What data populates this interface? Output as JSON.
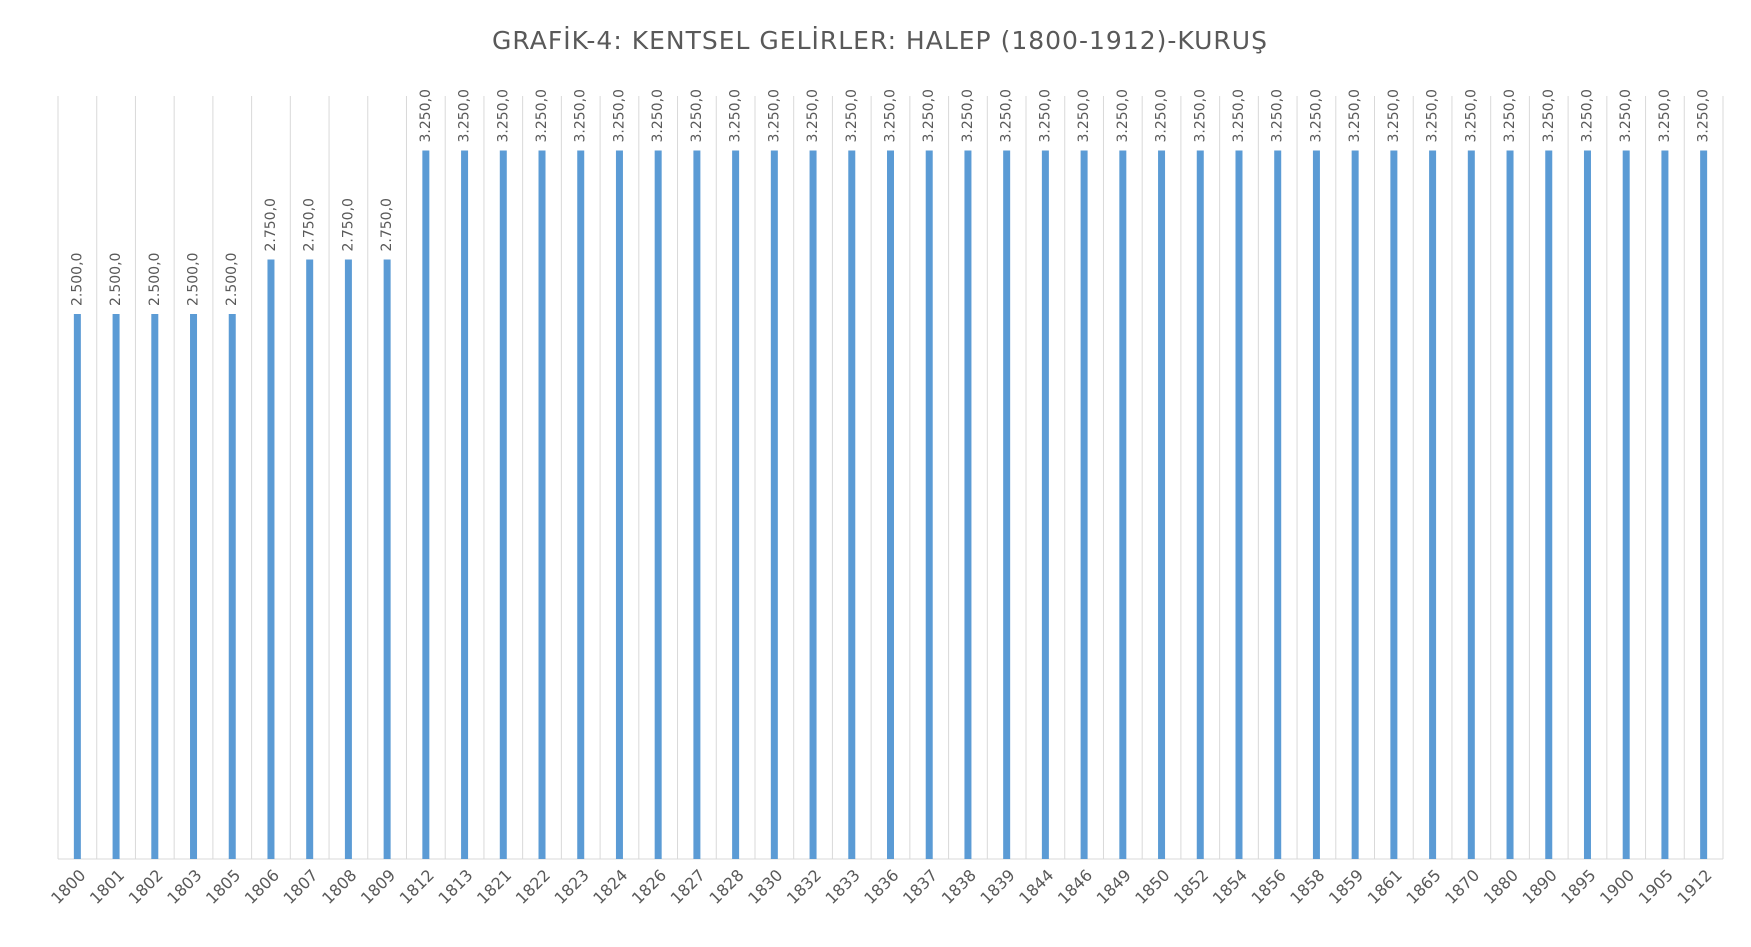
{
  "chart_data": {
    "type": "bar",
    "title": "GRAFİK-4: KENTSEL GELİRLER: HALEP (1800-1912)-KURUŞ",
    "categories": [
      "1800",
      "1801",
      "1802",
      "1803",
      "1805",
      "1806",
      "1807",
      "1808",
      "1809",
      "1812",
      "1813",
      "1821",
      "1822",
      "1823",
      "1824",
      "1826",
      "1827",
      "1828",
      "1830",
      "1832",
      "1833",
      "1836",
      "1837",
      "1838",
      "1839",
      "1844",
      "1846",
      "1849",
      "1850",
      "1852",
      "1854",
      "1856",
      "1858",
      "1859",
      "1861",
      "1865",
      "1870",
      "1880",
      "1890",
      "1895",
      "1900",
      "1905",
      "1912"
    ],
    "values": [
      2500,
      2500,
      2500,
      2500,
      2500,
      2750,
      2750,
      2750,
      2750,
      3250,
      3250,
      3250,
      3250,
      3250,
      3250,
      3250,
      3250,
      3250,
      3250,
      3250,
      3250,
      3250,
      3250,
      3250,
      3250,
      3250,
      3250,
      3250,
      3250,
      3250,
      3250,
      3250,
      3250,
      3250,
      3250,
      3250,
      3250,
      3250,
      3250,
      3250,
      3250,
      3250,
      3250
    ],
    "value_labels": [
      "2.500,0",
      "2.500,0",
      "2.500,0",
      "2.500,0",
      "2.500,0",
      "2.750,0",
      "2.750,0",
      "2.750,0",
      "2.750,0",
      "3.250,0",
      "3.250,0",
      "3.250,0",
      "3.250,0",
      "3.250,0",
      "3.250,0",
      "3.250,0",
      "3.250,0",
      "3.250,0",
      "3.250,0",
      "3.250,0",
      "3.250,0",
      "3.250,0",
      "3.250,0",
      "3.250,0",
      "3.250,0",
      "3.250,0",
      "3.250,0",
      "3.250,0",
      "3.250,0",
      "3.250,0",
      "3.250,0",
      "3.250,0",
      "3.250,0",
      "3.250,0",
      "3.250,0",
      "3.250,0",
      "3.250,0",
      "3.250,0",
      "3.250,0",
      "3.250,0",
      "3.250,0",
      "3.250,0",
      "3.250,0"
    ],
    "color": "#5b9bd5",
    "ylim": [
      0,
      3500
    ],
    "grid": true
  }
}
